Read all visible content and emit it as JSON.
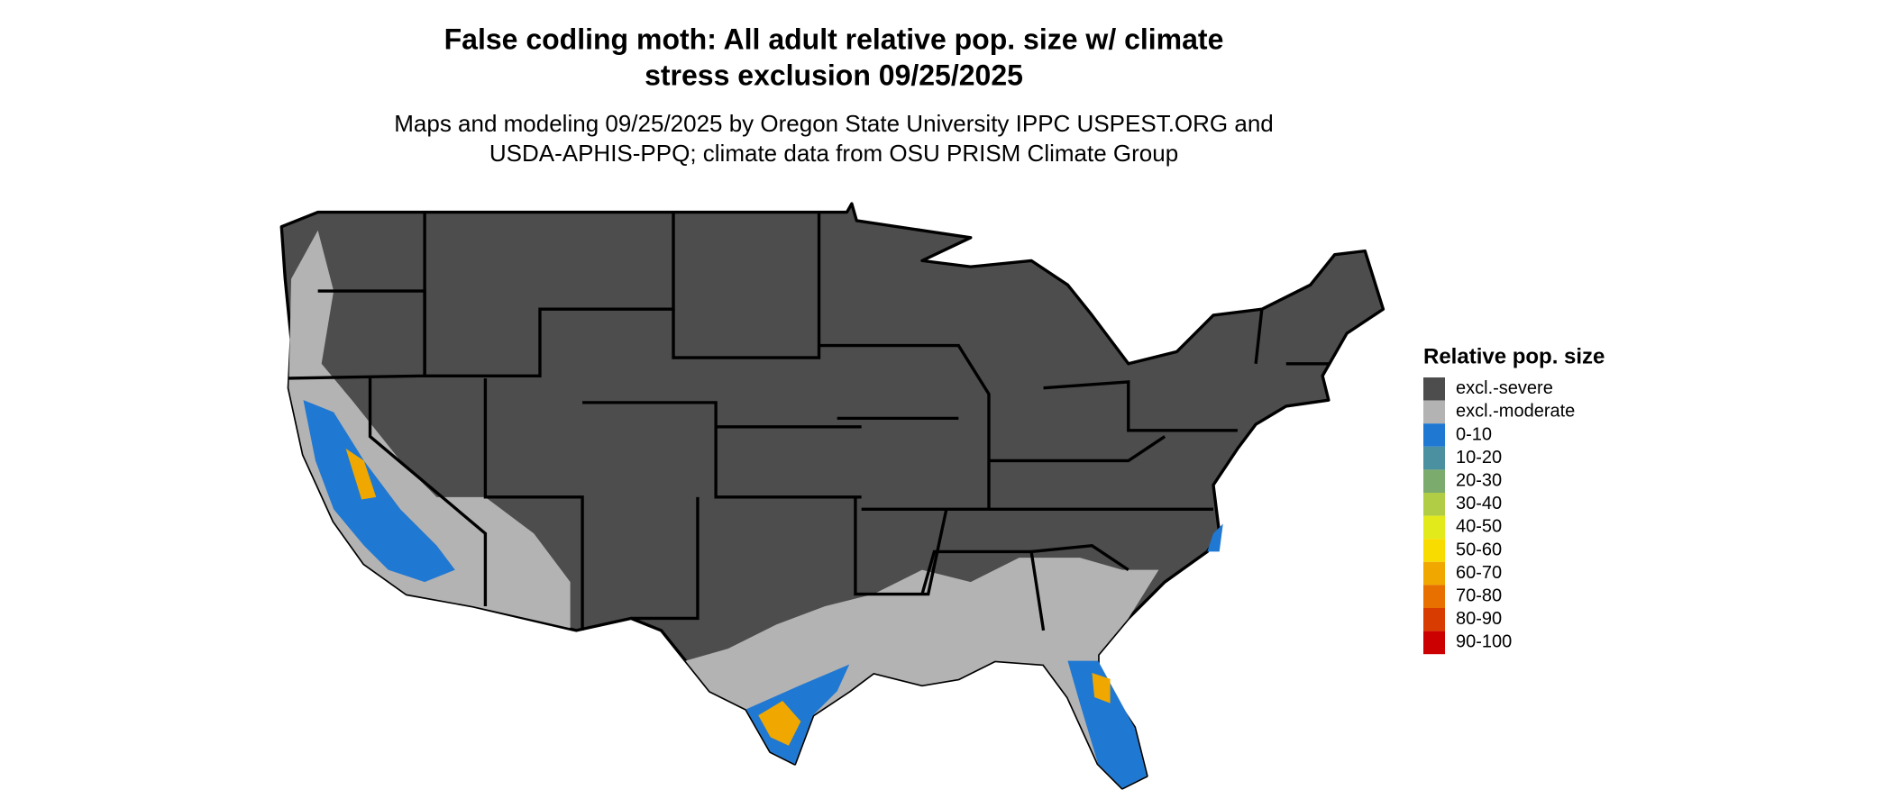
{
  "title": [
    "False codling moth: All adult relative pop. size w/ climate",
    "stress exclusion 09/25/2025"
  ],
  "subtitle": [
    "Maps and modeling 09/25/2025 by Oregon State University IPPC USPEST.ORG and",
    "USDA-APHIS-PPQ; climate data from OSU PRISM Climate Group"
  ],
  "legend": {
    "title": "Relative pop. size",
    "items": [
      {
        "label": "excl.-severe",
        "color": "#4d4d4d"
      },
      {
        "label": "excl.-moderate",
        "color": "#b3b3b3"
      },
      {
        "label": "0-10",
        "color": "#1f78d2"
      },
      {
        "label": "10-20",
        "color": "#4a90a0"
      },
      {
        "label": "20-30",
        "color": "#7cab6e"
      },
      {
        "label": "30-40",
        "color": "#b1cd45"
      },
      {
        "label": "40-50",
        "color": "#e3ea1c"
      },
      {
        "label": "50-60",
        "color": "#f8dc00"
      },
      {
        "label": "60-70",
        "color": "#f0a800"
      },
      {
        "label": "70-80",
        "color": "#e87000"
      },
      {
        "label": "80-90",
        "color": "#d83c00"
      },
      {
        "label": "90-100",
        "color": "#cc0000"
      }
    ]
  }
}
